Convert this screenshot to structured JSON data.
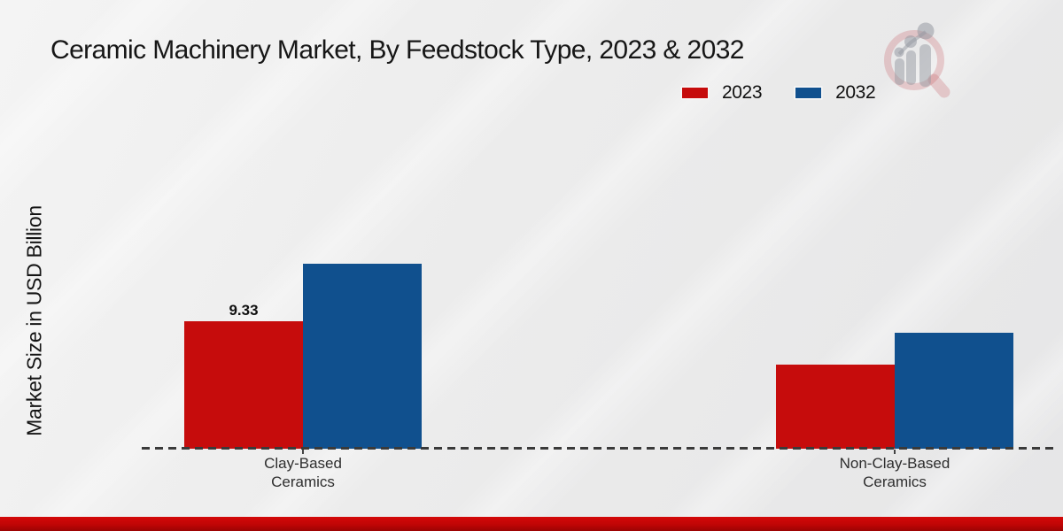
{
  "header": {
    "title": "Ceramic Machinery Market, By Feedstock Type, 2023 & 2032"
  },
  "axes": {
    "y_label": "Market Size in USD Billion"
  },
  "legend": {
    "items": [
      {
        "label": "2023",
        "color": "#c60c0c"
      },
      {
        "label": "2032",
        "color": "#10508e"
      }
    ]
  },
  "chart_data": {
    "type": "bar",
    "title": "Ceramic Machinery Market, By Feedstock Type, 2023 & 2032",
    "xlabel": "",
    "ylabel": "Market Size in USD Billion",
    "categories": [
      "Clay-Based Ceramics",
      "Non-Clay-Based Ceramics"
    ],
    "series": [
      {
        "name": "2023",
        "color": "#c60c0c",
        "values": [
          9.33,
          6.15
        ]
      },
      {
        "name": "2032",
        "color": "#10508e",
        "values": [
          13.55,
          8.5
        ]
      }
    ],
    "value_labels": [
      {
        "series": "2023",
        "category": "Clay-Based Ceramics",
        "text": "9.33"
      }
    ],
    "ylim": [
      0,
      16
    ],
    "grid": false,
    "legend_position": "top-right",
    "baseline_style": "dashed"
  },
  "branding": {
    "logo_name": "magnifier-growth-chart-logo",
    "footer_accent_color": "#c00505"
  }
}
